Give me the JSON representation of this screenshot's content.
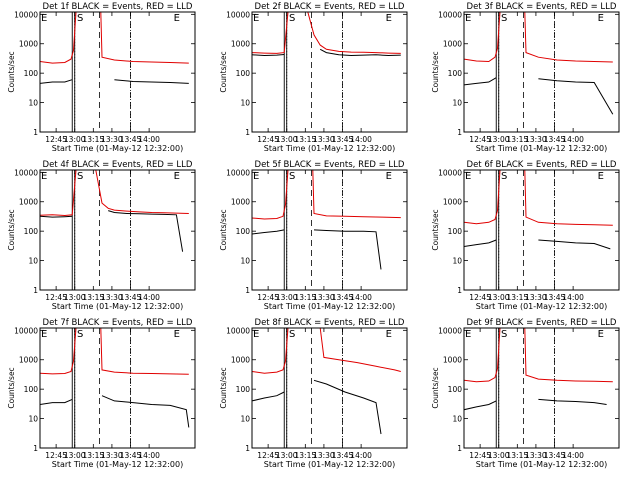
{
  "figure": {
    "ncols": 3,
    "nrows": 3,
    "colors": {
      "events": "#000000",
      "lld": "#e00000"
    }
  },
  "chart_data": [
    {
      "type": "line",
      "title": "Det 1f BLACK = Events, RED = LLD",
      "xlabel": "Start Time (01-May-12 12:32:00)",
      "ylabel": "Counts/sec",
      "xlim": [
        0,
        125
      ],
      "ylim": [
        1,
        12000
      ],
      "yscale": "log",
      "xticks": [
        13,
        28,
        43,
        58,
        73,
        88
      ],
      "xticklabels": [
        "12:45",
        "13:00",
        "13:15",
        "13:30",
        "13:45",
        "14:00"
      ],
      "yticks": [
        1,
        10,
        100,
        1000,
        10000
      ],
      "yticklabels": [
        "1",
        "10",
        "100",
        "1000",
        "10000"
      ],
      "dotted_lines": [
        28,
        73
      ],
      "dashed_lines": [
        48,
        73
      ],
      "solid_lines": [
        26,
        28
      ],
      "markers": [
        {
          "text": "E",
          "x": 0
        },
        {
          "text": "S",
          "x": 29
        },
        {
          "text": "E",
          "x": 107
        }
      ],
      "series": [
        {
          "color": "#e00000",
          "x": [
            0,
            10,
            20,
            25,
            27,
            29,
            49,
            50,
            60,
            75,
            90,
            105,
            120
          ],
          "y": [
            250,
            220,
            230,
            300,
            600,
            12000,
            12000,
            350,
            280,
            250,
            240,
            230,
            220
          ]
        },
        {
          "color": "#000000",
          "x": [
            0,
            10,
            20,
            26,
            49,
            60,
            75,
            90,
            105,
            120
          ],
          "y": [
            45,
            50,
            50,
            60,
            null,
            60,
            52,
            50,
            48,
            45
          ]
        }
      ]
    },
    {
      "type": "line",
      "title": "Det 2f BLACK = Events, RED = LLD",
      "xlabel": "Start Time (01-May-12 12:32:00)",
      "ylabel": "Counts/sec",
      "xlim": [
        0,
        125
      ],
      "ylim": [
        1,
        12000
      ],
      "yscale": "log",
      "xticks": [
        13,
        28,
        43,
        58,
        73,
        88
      ],
      "xticklabels": [
        "12:45",
        "13:00",
        "13:15",
        "13:30",
        "13:45",
        "14:00"
      ],
      "yticks": [
        1,
        10,
        100,
        1000,
        10000
      ],
      "yticklabels": [
        "1",
        "10",
        "100",
        "1000",
        "10000"
      ],
      "dotted_lines": [
        28,
        73
      ],
      "dashed_lines": [
        48,
        73
      ],
      "solid_lines": [
        26,
        28
      ],
      "markers": [
        {
          "text": "E",
          "x": 0
        },
        {
          "text": "S",
          "x": 29
        },
        {
          "text": "E",
          "x": 107
        }
      ],
      "series": [
        {
          "color": "#e00000",
          "x": [
            0,
            10,
            20,
            26,
            29,
            35,
            45,
            50,
            55,
            60,
            70,
            80,
            90,
            100,
            110,
            120
          ],
          "y": [
            500,
            480,
            470,
            500,
            12000,
            12000,
            12000,
            2000,
            900,
            650,
            550,
            520,
            510,
            500,
            480,
            470
          ]
        },
        {
          "color": "#000000",
          "x": [
            0,
            10,
            20,
            26,
            49,
            55,
            60,
            70,
            80,
            90,
            100,
            110,
            120
          ],
          "y": [
            420,
            400,
            410,
            430,
            null,
            650,
            500,
            420,
            400,
            410,
            420,
            400,
            410
          ]
        }
      ]
    },
    {
      "type": "line",
      "title": "Det 3f BLACK = Events, RED = LLD",
      "xlabel": "Start Time (01-May-12 12:32:00)",
      "ylabel": "Counts/sec",
      "xlim": [
        0,
        125
      ],
      "ylim": [
        1,
        12000
      ],
      "yscale": "log",
      "xticks": [
        13,
        28,
        43,
        58,
        73,
        88
      ],
      "xticklabels": [
        "12:45",
        "13:00",
        "13:15",
        "13:30",
        "13:45",
        "14:00"
      ],
      "yticks": [
        1,
        10,
        100,
        1000,
        10000
      ],
      "yticklabels": [
        "1",
        "10",
        "100",
        "1000",
        "10000"
      ],
      "dotted_lines": [
        28,
        73
      ],
      "dashed_lines": [
        48,
        73
      ],
      "solid_lines": [
        26,
        28
      ],
      "markers": [
        {
          "text": "E",
          "x": 0
        },
        {
          "text": "S",
          "x": 29
        },
        {
          "text": "E",
          "x": 107
        }
      ],
      "series": [
        {
          "color": "#e00000",
          "x": [
            0,
            10,
            20,
            25,
            27,
            29,
            49,
            50,
            60,
            75,
            90,
            105,
            120
          ],
          "y": [
            300,
            260,
            250,
            350,
            700,
            12000,
            12000,
            500,
            350,
            280,
            260,
            250,
            240
          ]
        },
        {
          "color": "#000000",
          "x": [
            0,
            10,
            20,
            26,
            49,
            60,
            75,
            90,
            105,
            120
          ],
          "y": [
            40,
            45,
            50,
            70,
            null,
            65,
            55,
            50,
            48,
            4
          ]
        }
      ]
    },
    {
      "type": "line",
      "title": "Det 4f BLACK = Events, RED = LLD",
      "xlabel": "Start Time (01-May-12 12:32:00)",
      "ylabel": "Counts/sec",
      "xlim": [
        0,
        125
      ],
      "ylim": [
        1,
        12000
      ],
      "yscale": "log",
      "xticks": [
        13,
        28,
        43,
        58,
        73,
        88
      ],
      "xticklabels": [
        "12:45",
        "13:00",
        "13:15",
        "13:30",
        "13:45",
        "14:00"
      ],
      "yticks": [
        1,
        10,
        100,
        1000,
        10000
      ],
      "yticklabels": [
        "1",
        "10",
        "100",
        "1000",
        "10000"
      ],
      "dotted_lines": [
        28,
        73
      ],
      "dashed_lines": [
        48,
        73
      ],
      "solid_lines": [
        26,
        28
      ],
      "markers": [
        {
          "text": "E",
          "x": 0
        },
        {
          "text": "S",
          "x": 29
        },
        {
          "text": "E",
          "x": 107
        }
      ],
      "series": [
        {
          "color": "#e00000",
          "x": [
            0,
            10,
            20,
            26,
            29,
            35,
            45,
            50,
            55,
            60,
            70,
            80,
            90,
            100,
            110,
            120
          ],
          "y": [
            350,
            360,
            340,
            360,
            12000,
            12000,
            12000,
            900,
            600,
            520,
            480,
            450,
            430,
            420,
            410,
            400
          ]
        },
        {
          "color": "#000000",
          "x": [
            0,
            10,
            20,
            26,
            49,
            55,
            60,
            70,
            80,
            90,
            100,
            110,
            115
          ],
          "y": [
            320,
            300,
            310,
            320,
            null,
            500,
            430,
            400,
            390,
            380,
            370,
            360,
            20
          ]
        }
      ]
    },
    {
      "type": "line",
      "title": "Det 5f BLACK = Events, RED = LLD",
      "xlabel": "Start Time (01-May-12 12:32:00)",
      "ylabel": "Counts/sec",
      "xlim": [
        0,
        125
      ],
      "ylim": [
        1,
        12000
      ],
      "yscale": "log",
      "xticks": [
        13,
        28,
        43,
        58,
        73,
        88
      ],
      "xticklabels": [
        "12:45",
        "13:00",
        "13:15",
        "13:30",
        "13:45",
        "14:00"
      ],
      "yticks": [
        1,
        10,
        100,
        1000,
        10000
      ],
      "yticklabels": [
        "1",
        "10",
        "100",
        "1000",
        "10000"
      ],
      "dotted_lines": [
        28,
        73
      ],
      "dashed_lines": [
        48,
        73
      ],
      "solid_lines": [
        26,
        28
      ],
      "markers": [
        {
          "text": "E",
          "x": 0
        },
        {
          "text": "S",
          "x": 29
        },
        {
          "text": "E",
          "x": 107
        }
      ],
      "series": [
        {
          "color": "#e00000",
          "x": [
            0,
            10,
            20,
            25,
            27,
            29,
            49,
            50,
            60,
            75,
            90,
            105,
            120
          ],
          "y": [
            280,
            260,
            270,
            320,
            800,
            12000,
            12000,
            400,
            330,
            320,
            310,
            300,
            290
          ]
        },
        {
          "color": "#000000",
          "x": [
            0,
            10,
            20,
            26,
            49,
            50,
            60,
            75,
            90,
            100,
            104
          ],
          "y": [
            80,
            90,
            100,
            110,
            null,
            110,
            105,
            100,
            100,
            95,
            5
          ]
        }
      ]
    },
    {
      "type": "line",
      "title": "Det 6f BLACK = Events, RED = LLD",
      "xlabel": "Start Time (01-May-12 12:32:00)",
      "ylabel": "Counts/sec",
      "xlim": [
        0,
        125
      ],
      "ylim": [
        1,
        12000
      ],
      "yscale": "log",
      "xticks": [
        13,
        28,
        43,
        58,
        73,
        88
      ],
      "xticklabels": [
        "12:45",
        "13:00",
        "13:15",
        "13:30",
        "13:45",
        "14:00"
      ],
      "yticks": [
        1,
        10,
        100,
        1000,
        10000
      ],
      "yticklabels": [
        "1",
        "10",
        "100",
        "1000",
        "10000"
      ],
      "dotted_lines": [
        28,
        73
      ],
      "dashed_lines": [
        48,
        73
      ],
      "solid_lines": [
        26,
        28
      ],
      "markers": [
        {
          "text": "E",
          "x": 0
        },
        {
          "text": "S",
          "x": 29
        },
        {
          "text": "E",
          "x": 107
        }
      ],
      "series": [
        {
          "color": "#e00000",
          "x": [
            0,
            10,
            20,
            25,
            27,
            29,
            49,
            50,
            60,
            75,
            90,
            105,
            120
          ],
          "y": [
            200,
            180,
            200,
            250,
            500,
            12000,
            12000,
            300,
            200,
            180,
            170,
            165,
            160
          ]
        },
        {
          "color": "#000000",
          "x": [
            0,
            10,
            20,
            26,
            49,
            60,
            75,
            90,
            105,
            118
          ],
          "y": [
            30,
            35,
            40,
            50,
            null,
            50,
            45,
            40,
            38,
            25
          ]
        }
      ]
    },
    {
      "type": "line",
      "title": "Det 7f BLACK = Events, RED = LLD",
      "xlabel": "Start Time (01-May-12 12:32:00)",
      "ylabel": "Counts/sec",
      "xlim": [
        0,
        125
      ],
      "ylim": [
        1,
        12000
      ],
      "yscale": "log",
      "xticks": [
        13,
        28,
        43,
        58,
        73,
        88
      ],
      "xticklabels": [
        "12:45",
        "13:00",
        "13:15",
        "13:30",
        "13:45",
        "14:00"
      ],
      "yticks": [
        1,
        10,
        100,
        1000,
        10000
      ],
      "yticklabels": [
        "1",
        "10",
        "100",
        "1000",
        "10000"
      ],
      "dotted_lines": [
        28,
        73
      ],
      "dashed_lines": [
        48,
        73
      ],
      "solid_lines": [
        26,
        28
      ],
      "markers": [
        {
          "text": "E",
          "x": 0
        },
        {
          "text": "S",
          "x": 29
        },
        {
          "text": "E",
          "x": 107
        }
      ],
      "series": [
        {
          "color": "#e00000",
          "x": [
            0,
            10,
            20,
            25,
            27,
            29,
            49,
            50,
            60,
            75,
            90,
            105,
            120
          ],
          "y": [
            350,
            330,
            340,
            400,
            900,
            12000,
            12000,
            450,
            380,
            350,
            340,
            330,
            320
          ]
        },
        {
          "color": "#000000",
          "x": [
            0,
            10,
            20,
            26,
            49,
            50,
            60,
            75,
            90,
            105,
            118,
            120
          ],
          "y": [
            30,
            35,
            35,
            45,
            null,
            60,
            40,
            35,
            30,
            28,
            20,
            5
          ]
        }
      ]
    },
    {
      "type": "line",
      "title": "Det 8f BLACK = Events, RED = LLD",
      "xlabel": "Start Time (01-May-12 12:32:00)",
      "ylabel": "Counts/sec",
      "xlim": [
        0,
        125
      ],
      "ylim": [
        1,
        12000
      ],
      "yscale": "log",
      "xticks": [
        13,
        28,
        43,
        58,
        73,
        88
      ],
      "xticklabels": [
        "12:45",
        "13:00",
        "13:15",
        "13:30",
        "13:45",
        "14:00"
      ],
      "yticks": [
        1,
        10,
        100,
        1000,
        10000
      ],
      "yticklabels": [
        "1",
        "10",
        "100",
        "1000",
        "10000"
      ],
      "dotted_lines": [
        28,
        73
      ],
      "dashed_lines": [
        48,
        73
      ],
      "solid_lines": [
        26,
        28
      ],
      "markers": [
        {
          "text": "E",
          "x": 0
        },
        {
          "text": "S",
          "x": 29
        },
        {
          "text": "E",
          "x": 107
        }
      ],
      "series": [
        {
          "color": "#e00000",
          "x": [
            0,
            10,
            20,
            25,
            27,
            29,
            55,
            58,
            70,
            85,
            100,
            115,
            120
          ],
          "y": [
            400,
            350,
            380,
            450,
            900,
            12000,
            12000,
            1200,
            1000,
            800,
            600,
            450,
            400
          ]
        },
        {
          "color": "#000000",
          "x": [
            0,
            10,
            20,
            26,
            49,
            50,
            60,
            75,
            90,
            100,
            104
          ],
          "y": [
            40,
            50,
            60,
            80,
            null,
            200,
            150,
            80,
            50,
            35,
            3
          ]
        }
      ]
    },
    {
      "type": "line",
      "title": "Det 9f BLACK = Events, RED = LLD",
      "xlabel": "Start Time (01-May-12 12:32:00)",
      "ylabel": "Counts/sec",
      "xlim": [
        0,
        125
      ],
      "ylim": [
        1,
        12000
      ],
      "yscale": "log",
      "xticks": [
        13,
        28,
        43,
        58,
        73,
        88
      ],
      "xticklabels": [
        "12:45",
        "13:00",
        "13:15",
        "13:30",
        "13:45",
        "14:00"
      ],
      "yticks": [
        1,
        10,
        100,
        1000,
        10000
      ],
      "yticklabels": [
        "1",
        "10",
        "100",
        "1000",
        "10000"
      ],
      "dotted_lines": [
        28,
        73
      ],
      "dashed_lines": [
        48,
        73
      ],
      "solid_lines": [
        26,
        28
      ],
      "markers": [
        {
          "text": "E",
          "x": 0
        },
        {
          "text": "S",
          "x": 29
        },
        {
          "text": "E",
          "x": 107
        }
      ],
      "series": [
        {
          "color": "#e00000",
          "x": [
            0,
            10,
            20,
            25,
            27,
            29,
            49,
            50,
            60,
            75,
            90,
            105,
            120
          ],
          "y": [
            200,
            180,
            190,
            250,
            500,
            12000,
            12000,
            300,
            220,
            200,
            190,
            185,
            180
          ]
        },
        {
          "color": "#000000",
          "x": [
            0,
            10,
            20,
            26,
            49,
            60,
            75,
            90,
            105,
            115
          ],
          "y": [
            20,
            25,
            30,
            40,
            null,
            45,
            40,
            38,
            35,
            30
          ]
        }
      ]
    }
  ]
}
